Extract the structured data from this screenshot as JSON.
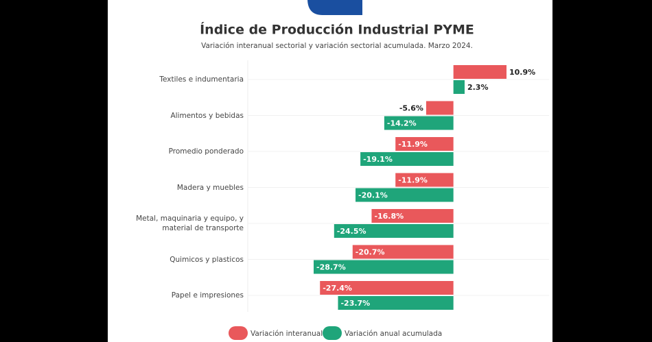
{
  "chart_data": {
    "type": "bar",
    "orientation": "horizontal",
    "title": "Índice de Producción Industrial PYME",
    "subtitle": "Variación interanual sectorial y variación sectorial acumulada. Marzo 2024.",
    "categories": [
      "Textiles e indumentaria",
      "Alimentos y bebidas",
      "Promedio ponderado",
      "Madera y muebles",
      "Metal, maquinaria y equipo, y material de transporte",
      "Quimicos y plasticos",
      "Papel e impresiones"
    ],
    "series": [
      {
        "name": "Variación interanual",
        "color": "#e9585b",
        "values": [
          10.9,
          -5.6,
          -11.9,
          -11.9,
          -16.8,
          -20.7,
          -27.4
        ],
        "value_labels": [
          "10.9%",
          "-5.6%",
          "-11.9%",
          "-11.9%",
          "-16.8%",
          "-20.7%",
          "-27.4%"
        ]
      },
      {
        "name": "Variación anual acumulada",
        "color": "#1fa57a",
        "values": [
          2.3,
          -14.2,
          -19.1,
          -20.1,
          -24.5,
          -28.7,
          -23.7
        ],
        "value_labels": [
          "2.3%",
          "-14.2%",
          "-19.1%",
          "-20.1%",
          "-24.5%",
          "-28.7%",
          "-23.7%"
        ]
      }
    ],
    "legend": "bottom"
  }
}
